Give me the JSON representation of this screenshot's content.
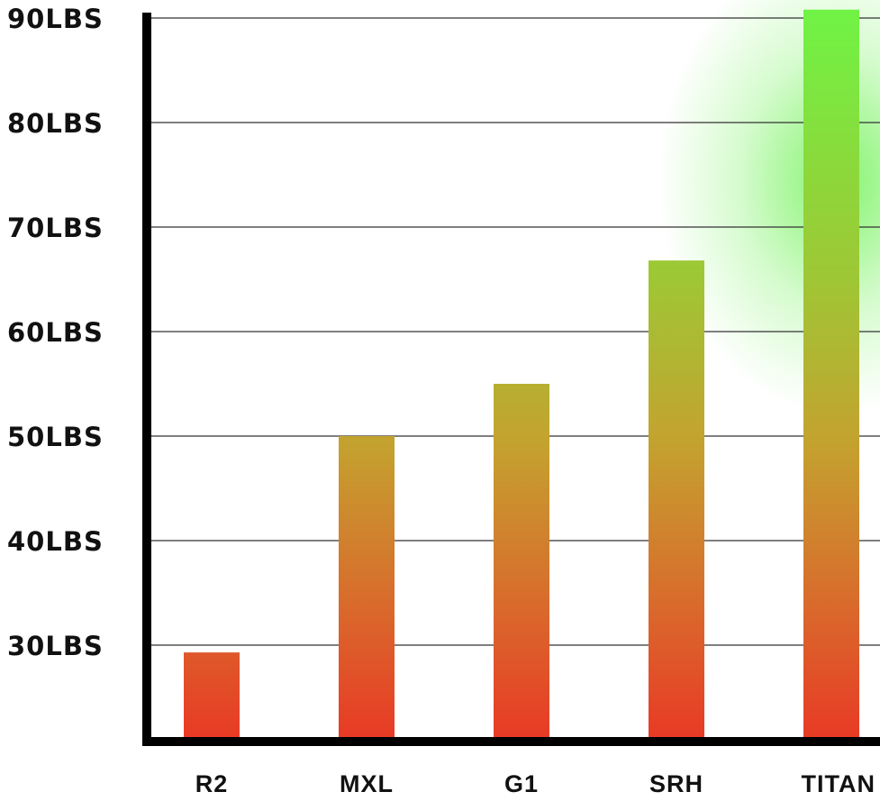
{
  "chart_data": {
    "type": "bar",
    "title": "",
    "xlabel": "",
    "ylabel": "",
    "categories": [
      "R2",
      "MXL",
      "G1",
      "SRH",
      "TITAN"
    ],
    "values": [
      29.3,
      50,
      55,
      66.8,
      90.8
    ],
    "ylim": [
      21,
      90
    ],
    "yticks": [
      30,
      40,
      50,
      60,
      70,
      80,
      90
    ],
    "ytick_labels": [
      "30LBS",
      "40LBS",
      "50LBS",
      "60LBS",
      "70LBS",
      "80LBS",
      "90LBS"
    ],
    "grid": true,
    "legend": "none",
    "colors": {
      "bar_bottom": "#e83a25",
      "bar_mid": "#c4a22f",
      "bar_top": "#6ef545",
      "glow": "#5af03c",
      "axis": "#000000",
      "grid": "#333333"
    }
  }
}
